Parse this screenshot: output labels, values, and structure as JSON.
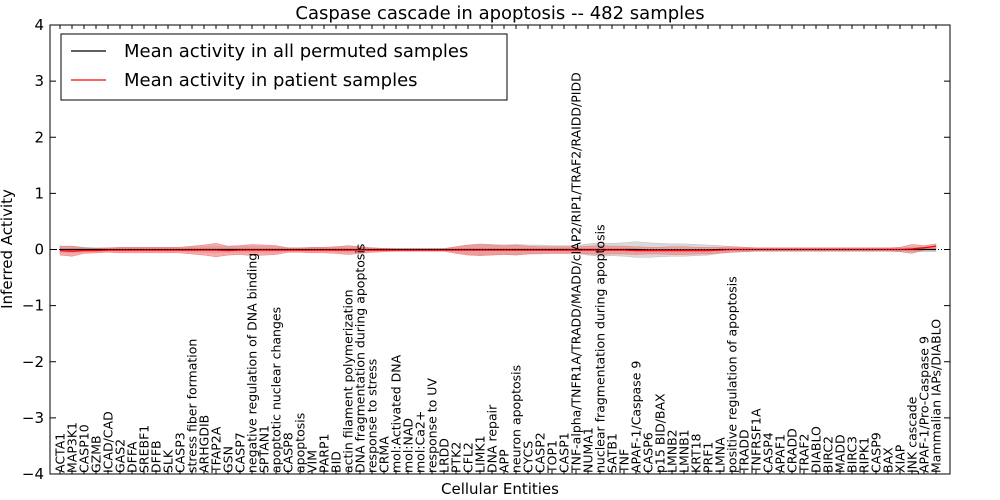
{
  "chart_data": {
    "type": "line",
    "title": "Caspase cascade in apoptosis -- 482 samples",
    "xlabel": "Cellular Entities",
    "ylabel": "Inferred Activity",
    "ylim": [
      -4,
      4
    ],
    "yticks": [
      -4,
      -3,
      -2,
      -1,
      0,
      1,
      2,
      3,
      4
    ],
    "ytick_labels": [
      "−4",
      "−3",
      "−2",
      "−1",
      "0",
      "1",
      "2",
      "3",
      "4"
    ],
    "legend_position": "top-left",
    "legend": [
      {
        "name": "Mean activity in all permuted samples",
        "color": "#000000"
      },
      {
        "name": "Mean activity in patient samples",
        "color": "#ff0000"
      }
    ],
    "categories": [
      "ACTA1",
      "MAP3K1",
      "CASP10",
      "GZMB",
      "ICAD/CAD",
      "GAS2",
      "DFFA",
      "SREBF1",
      "DFFB",
      "SLK",
      "CASP3",
      "stress fiber formation",
      "ARHGDIB",
      "TFAP2A",
      "GSN",
      "CASP7",
      "negative regulation of DNA binding",
      "SPTAN1",
      "apoptotic nuclear changes",
      "CASP8",
      "apoptosis",
      "VIM",
      "PARP1",
      "BID",
      "actin filament polymerization",
      "DNA fragmentation during apoptosis",
      "response to stress",
      "CRMA",
      "mol:Activated DNA",
      "mol:NAD",
      "mol:Ca2+",
      "response to UV",
      "LRDD",
      "PTK2",
      "CFL2",
      "LIMK1",
      "DNA repair",
      "APP",
      "neuron apoptosis",
      "CYCS",
      "CASP2",
      "TOP1",
      "CASP1",
      "TNF-alpha/TNFR1A/TRADD/MADD/cIAP2/RIP1/TRAF2/RAIDD/PIDD",
      "NUMA1",
      "nuclear fragmentation during apoptosis",
      "SATB1",
      "TNF",
      "APAF-1/Caspase 9",
      "CASP6",
      "p15 BID/BAX",
      "LMNB2",
      "LMNB1",
      "KRT18",
      "PRF1",
      "LMNA",
      "positive regulation of apoptosis",
      "TRADD",
      "TNFRSF1A",
      "CASP4",
      "APAF1",
      "CRADD",
      "TRAF2",
      "DIABLO",
      "BIRC2",
      "MADD",
      "BIRC3",
      "RIPK1",
      "CASP9",
      "BAX",
      "XIAP",
      "JNK cascade",
      "APAF-1/Pro-Caspase 9",
      "Mammalian IAPs/DIABLO"
    ],
    "series": [
      {
        "name": "Mean activity in all permuted samples",
        "color": "#000000",
        "values": [
          0,
          0,
          0,
          0,
          0,
          0,
          0,
          0,
          0,
          0,
          0,
          0,
          0,
          0,
          0,
          0,
          0,
          0,
          0,
          0,
          0,
          0,
          0,
          0,
          0,
          0,
          0,
          0,
          0,
          0,
          0,
          0,
          0,
          0,
          0,
          0,
          0,
          0,
          0,
          0,
          0,
          0,
          0,
          0,
          0,
          0,
          0,
          0,
          0,
          -0.01,
          -0.01,
          -0.01,
          -0.01,
          -0.01,
          -0.01,
          0,
          0,
          0,
          0,
          0,
          0,
          0,
          0,
          0,
          0,
          0,
          0,
          0,
          0,
          0,
          0,
          0,
          0,
          0
        ],
        "band": {
          "color": "#bfbfbf",
          "half_width": [
            0.06,
            0.06,
            0.04,
            0.03,
            0.03,
            0.03,
            0.03,
            0.03,
            0.03,
            0.03,
            0.03,
            0.04,
            0.05,
            0.06,
            0.05,
            0.05,
            0.06,
            0.05,
            0.05,
            0.03,
            0.03,
            0.03,
            0.03,
            0.04,
            0.05,
            0.04,
            0.03,
            0.02,
            0.02,
            0.02,
            0.02,
            0.02,
            0.02,
            0.05,
            0.08,
            0.1,
            0.09,
            0.08,
            0.09,
            0.08,
            0.08,
            0.07,
            0.07,
            0.07,
            0.1,
            0.12,
            0.11,
            0.12,
            0.14,
            0.13,
            0.12,
            0.11,
            0.11,
            0.1,
            0.09,
            0.07,
            0.05,
            0.04,
            0.03,
            0.03,
            0.03,
            0.03,
            0.03,
            0.03,
            0.03,
            0.03,
            0.03,
            0.03,
            0.03,
            0.03,
            0.03,
            0.04,
            0.04,
            0.04
          ]
        }
      },
      {
        "name": "Mean activity in patient samples",
        "color": "#ff0000",
        "values": [
          -0.02,
          -0.03,
          -0.02,
          -0.02,
          -0.01,
          -0.01,
          -0.01,
          -0.01,
          -0.01,
          -0.01,
          -0.01,
          -0.01,
          -0.01,
          -0.01,
          -0.02,
          -0.01,
          -0.01,
          -0.01,
          -0.01,
          -0.01,
          -0.01,
          -0.01,
          -0.01,
          -0.01,
          -0.01,
          -0.01,
          -0.01,
          -0.01,
          -0.01,
          -0.01,
          -0.01,
          -0.01,
          -0.01,
          -0.01,
          -0.01,
          -0.01,
          -0.01,
          -0.01,
          -0.01,
          -0.01,
          -0.01,
          -0.01,
          -0.01,
          -0.01,
          -0.01,
          -0.01,
          -0.01,
          -0.01,
          -0.02,
          -0.02,
          -0.02,
          -0.02,
          -0.02,
          -0.02,
          -0.02,
          -0.01,
          0,
          0,
          0,
          0,
          0,
          0,
          0,
          0,
          0,
          0,
          0,
          0,
          0,
          0,
          0,
          0.01,
          0.03,
          0.06
        ],
        "band": {
          "color": "#f08080",
          "half_width": [
            0.08,
            0.09,
            0.05,
            0.04,
            0.04,
            0.05,
            0.05,
            0.05,
            0.05,
            0.05,
            0.05,
            0.07,
            0.09,
            0.12,
            0.08,
            0.08,
            0.1,
            0.09,
            0.08,
            0.04,
            0.04,
            0.05,
            0.05,
            0.06,
            0.08,
            0.06,
            0.04,
            0.03,
            0.02,
            0.02,
            0.02,
            0.02,
            0.02,
            0.06,
            0.09,
            0.1,
            0.09,
            0.08,
            0.09,
            0.07,
            0.06,
            0.06,
            0.06,
            0.06,
            0.07,
            0.08,
            0.07,
            0.07,
            0.07,
            0.06,
            0.06,
            0.07,
            0.07,
            0.06,
            0.06,
            0.05,
            0.05,
            0.04,
            0.03,
            0.03,
            0.03,
            0.03,
            0.03,
            0.03,
            0.03,
            0.03,
            0.03,
            0.03,
            0.03,
            0.03,
            0.04,
            0.08,
            0.04,
            0.04
          ]
        }
      }
    ]
  }
}
